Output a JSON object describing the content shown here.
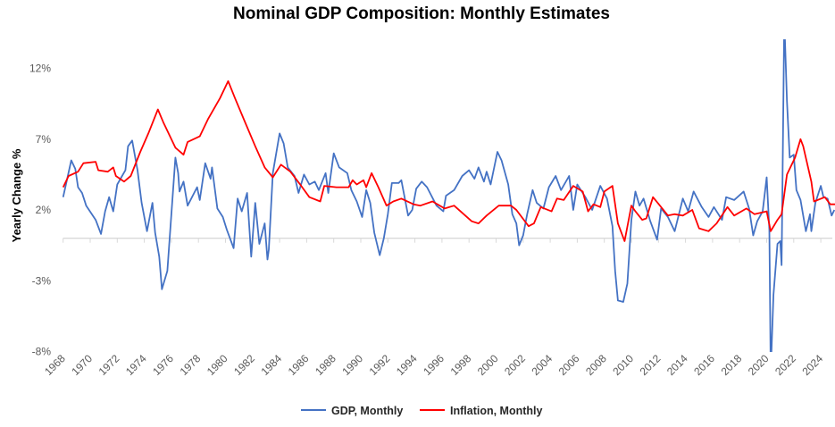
{
  "chart_data": {
    "type": "line",
    "title": "Nominal GDP Composition: Monthly Estimates",
    "xlabel": "",
    "ylabel": "Yearly Change %",
    "xlim": [
      1968,
      2025.1
    ],
    "ylim": [
      -8,
      14
    ],
    "x_ticks": [
      "1968",
      "1970",
      "1972",
      "1974",
      "1976",
      "1978",
      "1980",
      "1982",
      "1984",
      "1986",
      "1988",
      "1990",
      "1992",
      "1994",
      "1996",
      "1998",
      "2000",
      "2002",
      "2004",
      "2006",
      "2008",
      "2010",
      "2012",
      "2014",
      "2016",
      "2018",
      "2020",
      "2022",
      "2024"
    ],
    "y_ticks": [
      {
        "value": -8,
        "label": "-8%"
      },
      {
        "value": -3,
        "label": "-3%"
      },
      {
        "value": 2,
        "label": "2%"
      },
      {
        "value": 7,
        "label": "7%"
      },
      {
        "value": 12,
        "label": "12%"
      }
    ],
    "grid": false,
    "legend_position": "bottom",
    "series": [
      {
        "name": "GDP, Monthly",
        "color": "#4472C4",
        "points": [
          [
            1968.0,
            2.9
          ],
          [
            1968.6,
            5.5
          ],
          [
            1968.9,
            4.9
          ],
          [
            1969.1,
            3.6
          ],
          [
            1969.4,
            3.2
          ],
          [
            1969.7,
            2.3
          ],
          [
            1970.4,
            1.3
          ],
          [
            1970.8,
            0.3
          ],
          [
            1971.1,
            1.9
          ],
          [
            1971.4,
            2.9
          ],
          [
            1971.7,
            1.9
          ],
          [
            1972.0,
            3.8
          ],
          [
            1972.6,
            4.8
          ],
          [
            1972.8,
            6.5
          ],
          [
            1973.1,
            6.9
          ],
          [
            1973.5,
            4.8
          ],
          [
            1973.8,
            2.5
          ],
          [
            1974.2,
            0.5
          ],
          [
            1974.6,
            2.5
          ],
          [
            1974.8,
            0.4
          ],
          [
            1975.1,
            -1.3
          ],
          [
            1975.3,
            -3.6
          ],
          [
            1975.7,
            -2.3
          ],
          [
            1976.0,
            1.7
          ],
          [
            1976.3,
            5.7
          ],
          [
            1976.5,
            4.6
          ],
          [
            1976.6,
            3.3
          ],
          [
            1976.9,
            4.0
          ],
          [
            1977.2,
            2.3
          ],
          [
            1977.9,
            3.6
          ],
          [
            1978.1,
            2.7
          ],
          [
            1978.5,
            5.3
          ],
          [
            1978.9,
            4.2
          ],
          [
            1979.0,
            5.0
          ],
          [
            1979.4,
            2.1
          ],
          [
            1979.8,
            1.5
          ],
          [
            1980.1,
            0.6
          ],
          [
            1980.6,
            -0.7
          ],
          [
            1980.9,
            2.8
          ],
          [
            1981.2,
            1.9
          ],
          [
            1981.6,
            3.2
          ],
          [
            1981.9,
            -1.3
          ],
          [
            1982.2,
            2.5
          ],
          [
            1982.5,
            -0.4
          ],
          [
            1982.9,
            1.05
          ],
          [
            1983.1,
            -1.5
          ],
          [
            1983.2,
            -0.8
          ],
          [
            1983.5,
            4.6
          ],
          [
            1984.0,
            7.4
          ],
          [
            1984.3,
            6.7
          ],
          [
            1984.6,
            5.0
          ],
          [
            1985.1,
            4.4
          ],
          [
            1985.4,
            3.2
          ],
          [
            1985.8,
            4.5
          ],
          [
            1986.2,
            3.8
          ],
          [
            1986.6,
            4.0
          ],
          [
            1986.9,
            3.4
          ],
          [
            1987.4,
            4.6
          ],
          [
            1987.6,
            3.2
          ],
          [
            1988.0,
            6.0
          ],
          [
            1988.4,
            5.0
          ],
          [
            1989.0,
            4.6
          ],
          [
            1989.3,
            3.4
          ],
          [
            1989.7,
            2.6
          ],
          [
            1990.1,
            1.5
          ],
          [
            1990.4,
            3.4
          ],
          [
            1990.7,
            2.5
          ],
          [
            1991.0,
            0.4
          ],
          [
            1991.4,
            -1.2
          ],
          [
            1991.7,
            0.0
          ],
          [
            1992.0,
            1.7
          ],
          [
            1992.3,
            3.9
          ],
          [
            1992.8,
            3.9
          ],
          [
            1993.0,
            4.1
          ],
          [
            1993.5,
            1.6
          ],
          [
            1993.8,
            2.0
          ],
          [
            1994.1,
            3.5
          ],
          [
            1994.5,
            4.0
          ],
          [
            1994.9,
            3.6
          ],
          [
            1995.6,
            2.3
          ],
          [
            1996.1,
            1.9
          ],
          [
            1996.3,
            3.0
          ],
          [
            1996.9,
            3.4
          ],
          [
            1997.5,
            4.4
          ],
          [
            1998.0,
            4.8
          ],
          [
            1998.4,
            4.2
          ],
          [
            1998.7,
            5.0
          ],
          [
            1999.1,
            4.0
          ],
          [
            1999.3,
            4.7
          ],
          [
            1999.6,
            3.8
          ],
          [
            2000.1,
            6.1
          ],
          [
            2000.4,
            5.5
          ],
          [
            2000.9,
            3.8
          ],
          [
            2001.2,
            1.7
          ],
          [
            2001.5,
            1.05
          ],
          [
            2001.7,
            -0.5
          ],
          [
            2002.0,
            0.2
          ],
          [
            2002.3,
            1.7
          ],
          [
            2002.7,
            3.4
          ],
          [
            2003.0,
            2.5
          ],
          [
            2003.5,
            2.1
          ],
          [
            2003.9,
            3.6
          ],
          [
            2004.4,
            4.4
          ],
          [
            2004.8,
            3.4
          ],
          [
            2005.4,
            4.4
          ],
          [
            2005.7,
            2.0
          ],
          [
            2006.0,
            3.8
          ],
          [
            2006.6,
            2.9
          ],
          [
            2007.1,
            2.0
          ],
          [
            2007.7,
            3.7
          ],
          [
            2008.2,
            2.8
          ],
          [
            2008.6,
            0.85
          ],
          [
            2008.8,
            -2.3
          ],
          [
            2009.0,
            -4.4
          ],
          [
            2009.4,
            -4.5
          ],
          [
            2009.7,
            -3.2
          ],
          [
            2010.0,
            1.3
          ],
          [
            2010.3,
            3.3
          ],
          [
            2010.6,
            2.3
          ],
          [
            2010.9,
            2.8
          ],
          [
            2011.4,
            1.2
          ],
          [
            2011.9,
            -0.1
          ],
          [
            2012.2,
            2.1
          ],
          [
            2012.7,
            1.5
          ],
          [
            2013.2,
            0.5
          ],
          [
            2013.8,
            2.8
          ],
          [
            2014.2,
            1.9
          ],
          [
            2014.6,
            3.3
          ],
          [
            2015.2,
            2.2
          ],
          [
            2015.7,
            1.5
          ],
          [
            2016.1,
            2.2
          ],
          [
            2016.7,
            1.3
          ],
          [
            2017.0,
            2.9
          ],
          [
            2017.6,
            2.7
          ],
          [
            2018.3,
            3.3
          ],
          [
            2018.7,
            2.1
          ],
          [
            2019.0,
            0.2
          ],
          [
            2019.3,
            1.2
          ],
          [
            2019.7,
            1.9
          ],
          [
            2020.0,
            4.3
          ],
          [
            2020.2,
            0.6
          ],
          [
            2020.3,
            -9.5
          ],
          [
            2020.5,
            -4.0
          ],
          [
            2020.8,
            -0.4
          ],
          [
            2021.0,
            -0.2
          ],
          [
            2021.1,
            -1.9
          ],
          [
            2021.3,
            15.5
          ],
          [
            2021.5,
            9.7
          ],
          [
            2021.7,
            5.7
          ],
          [
            2022.0,
            5.9
          ],
          [
            2022.2,
            3.4
          ],
          [
            2022.5,
            2.7
          ],
          [
            2022.9,
            0.5
          ],
          [
            2023.2,
            1.7
          ],
          [
            2023.3,
            0.5
          ],
          [
            2023.6,
            2.5
          ],
          [
            2024.0,
            3.7
          ],
          [
            2024.2,
            2.9
          ],
          [
            2024.5,
            2.8
          ],
          [
            2024.8,
            1.6
          ],
          [
            2025.0,
            2.0
          ]
        ]
      },
      {
        "name": "Inflation, Monthly",
        "color": "#FF0000",
        "points": [
          [
            1968.0,
            3.6
          ],
          [
            1968.4,
            4.4
          ],
          [
            1969.1,
            4.7
          ],
          [
            1969.5,
            5.3
          ],
          [
            1970.4,
            5.4
          ],
          [
            1970.6,
            4.8
          ],
          [
            1971.3,
            4.7
          ],
          [
            1971.7,
            5.0
          ],
          [
            1971.9,
            4.4
          ],
          [
            1972.5,
            4.0
          ],
          [
            1973.0,
            4.4
          ],
          [
            1973.7,
            6.1
          ],
          [
            1974.3,
            7.4
          ],
          [
            1975.0,
            9.1
          ],
          [
            1975.4,
            8.2
          ],
          [
            1976.3,
            6.4
          ],
          [
            1976.9,
            5.9
          ],
          [
            1977.2,
            6.8
          ],
          [
            1978.1,
            7.2
          ],
          [
            1978.7,
            8.4
          ],
          [
            1979.6,
            9.9
          ],
          [
            1980.2,
            11.1
          ],
          [
            1980.7,
            9.9
          ],
          [
            1981.4,
            8.3
          ],
          [
            1982.2,
            6.5
          ],
          [
            1982.9,
            5.0
          ],
          [
            1983.5,
            4.3
          ],
          [
            1984.1,
            5.2
          ],
          [
            1984.8,
            4.7
          ],
          [
            1985.6,
            3.7
          ],
          [
            1986.2,
            2.9
          ],
          [
            1987.0,
            2.6
          ],
          [
            1987.3,
            3.7
          ],
          [
            1988.2,
            3.6
          ],
          [
            1989.1,
            3.6
          ],
          [
            1989.4,
            4.1
          ],
          [
            1989.7,
            3.8
          ],
          [
            1990.2,
            4.1
          ],
          [
            1990.4,
            3.6
          ],
          [
            1990.8,
            4.6
          ],
          [
            1991.3,
            3.6
          ],
          [
            1991.9,
            2.3
          ],
          [
            1992.4,
            2.6
          ],
          [
            1993.0,
            2.8
          ],
          [
            1993.9,
            2.4
          ],
          [
            1994.4,
            2.3
          ],
          [
            1995.3,
            2.6
          ],
          [
            1996.2,
            2.1
          ],
          [
            1996.9,
            2.3
          ],
          [
            1998.2,
            1.2
          ],
          [
            1998.7,
            1.05
          ],
          [
            1999.3,
            1.6
          ],
          [
            2000.2,
            2.3
          ],
          [
            2001.1,
            2.3
          ],
          [
            2001.5,
            2.0
          ],
          [
            2002.4,
            0.85
          ],
          [
            2002.8,
            1.05
          ],
          [
            2003.3,
            2.2
          ],
          [
            2004.1,
            1.9
          ],
          [
            2004.5,
            2.8
          ],
          [
            2005.0,
            2.7
          ],
          [
            2005.7,
            3.7
          ],
          [
            2006.4,
            3.3
          ],
          [
            2006.8,
            1.9
          ],
          [
            2007.2,
            2.4
          ],
          [
            2007.7,
            2.2
          ],
          [
            2008.0,
            3.3
          ],
          [
            2008.6,
            3.7
          ],
          [
            2009.0,
            1.05
          ],
          [
            2009.5,
            -0.2
          ],
          [
            2010.0,
            2.3
          ],
          [
            2010.3,
            1.9
          ],
          [
            2010.8,
            1.3
          ],
          [
            2011.1,
            1.4
          ],
          [
            2011.6,
            2.9
          ],
          [
            2012.2,
            2.2
          ],
          [
            2012.7,
            1.6
          ],
          [
            2013.2,
            1.7
          ],
          [
            2013.8,
            1.6
          ],
          [
            2014.5,
            2.0
          ],
          [
            2015.0,
            0.7
          ],
          [
            2015.7,
            0.5
          ],
          [
            2016.3,
            1.05
          ],
          [
            2017.1,
            2.2
          ],
          [
            2017.6,
            1.6
          ],
          [
            2018.5,
            2.1
          ],
          [
            2019.1,
            1.7
          ],
          [
            2020.0,
            1.9
          ],
          [
            2020.3,
            0.5
          ],
          [
            2020.8,
            1.3
          ],
          [
            2021.1,
            1.7
          ],
          [
            2021.5,
            4.5
          ],
          [
            2022.1,
            5.7
          ],
          [
            2022.5,
            7.0
          ],
          [
            2022.7,
            6.5
          ],
          [
            2023.3,
            4.0
          ],
          [
            2023.5,
            2.6
          ],
          [
            2024.3,
            2.9
          ],
          [
            2024.7,
            2.4
          ],
          [
            2025.1,
            2.4
          ]
        ]
      }
    ]
  }
}
